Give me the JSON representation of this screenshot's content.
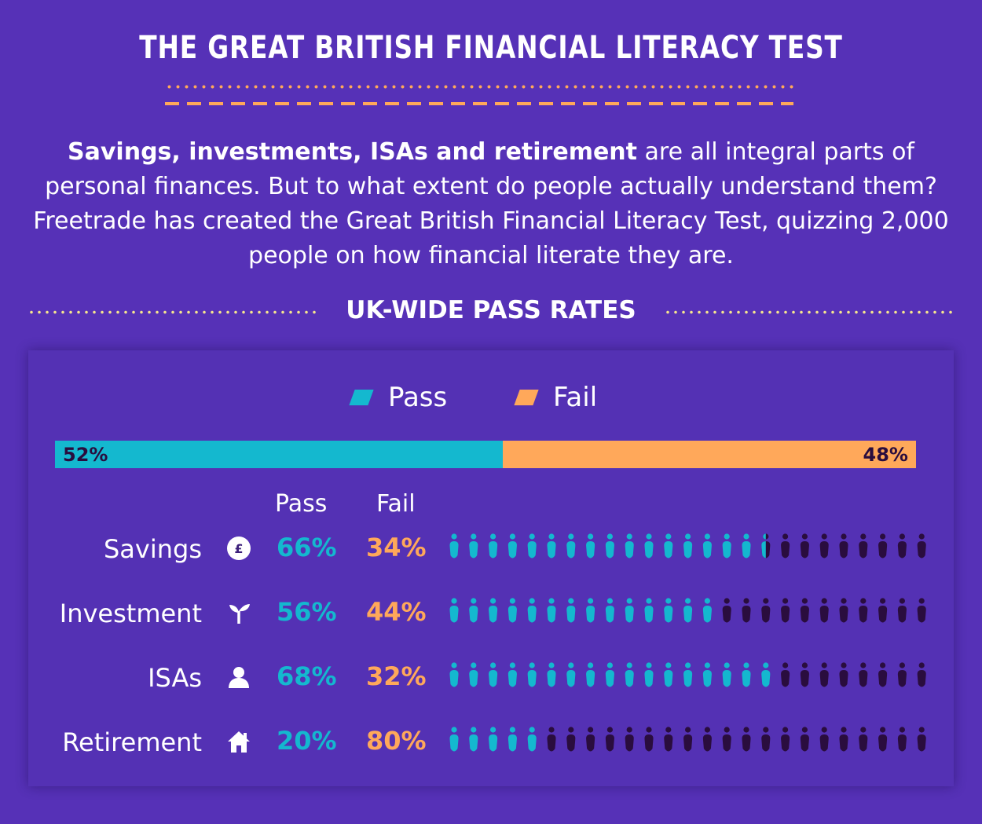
{
  "title": "THE GREAT BRITISH FINANCIAL LITERACY TEST",
  "intro": {
    "bold": "Savings, investments, ISAs and retirement",
    "rest": " are all integral parts of personal finances. But to what extent do people actually understand them? Freetrade has created the Great British Financial Literacy Test, quizzing 2,000 people on how financial literate they are."
  },
  "section_title": "UK-WIDE PASS RATES",
  "legend": {
    "pass": "Pass",
    "fail": "Fail"
  },
  "columns": {
    "pass": "Pass",
    "fail": "Fail"
  },
  "colors": {
    "background": "#5631b7",
    "pass": "#14b8cf",
    "fail": "#ffa85a",
    "fail_person": "#2a0d3e",
    "accent_orange": "#ffa85a",
    "accent_yellow": "#f6e58d"
  },
  "chart_data": {
    "type": "bar",
    "overall": {
      "pass": 52,
      "fail": 48,
      "pass_label": "52%",
      "fail_label": "48%"
    },
    "categories": [
      "Savings",
      "Investment",
      "ISAs",
      "Retirement"
    ],
    "series": [
      {
        "name": "Pass",
        "values": [
          66,
          56,
          68,
          20
        ]
      },
      {
        "name": "Fail",
        "values": [
          34,
          44,
          32,
          80
        ]
      }
    ],
    "rows": [
      {
        "label": "Savings",
        "icon": "pound-coin-icon",
        "pass": "66%",
        "fail": "34%"
      },
      {
        "label": "Investment",
        "icon": "sprout-icon",
        "pass": "56%",
        "fail": "44%"
      },
      {
        "label": "ISAs",
        "icon": "person-icon",
        "pass": "68%",
        "fail": "32%"
      },
      {
        "label": "Retirement",
        "icon": "house-icon",
        "pass": "20%",
        "fail": "80%"
      }
    ]
  }
}
